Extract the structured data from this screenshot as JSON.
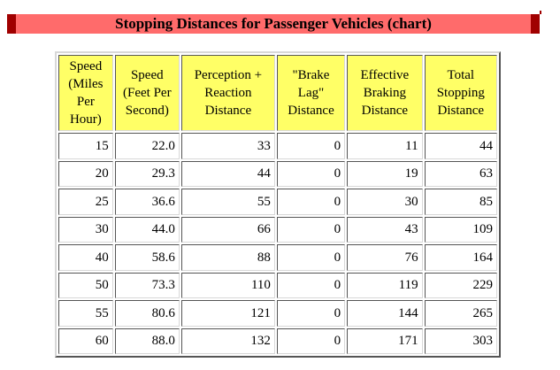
{
  "title": "Stopping Distances for Passenger Vehicles (chart)",
  "columns": [
    "Speed (Miles Per Hour)",
    "Speed (Feet Per Second)",
    "Perception + Reaction Distance",
    "\"Brake Lag\" Distance",
    "Effective Braking Distance",
    "Total Stopping Distance"
  ],
  "rows": [
    [
      "15",
      "22.0",
      "33",
      "0",
      "11",
      "44"
    ],
    [
      "20",
      "29.3",
      "44",
      "0",
      "19",
      "63"
    ],
    [
      "25",
      "36.6",
      "55",
      "0",
      "30",
      "85"
    ],
    [
      "30",
      "44.0",
      "66",
      "0",
      "43",
      "109"
    ],
    [
      "40",
      "58.6",
      "88",
      "0",
      "76",
      "164"
    ],
    [
      "50",
      "73.3",
      "110",
      "0",
      "119",
      "229"
    ],
    [
      "55",
      "80.6",
      "121",
      "0",
      "144",
      "265"
    ],
    [
      "60",
      "88.0",
      "132",
      "0",
      "171",
      "303"
    ]
  ],
  "colors": {
    "title_background": "#ff6b6b",
    "title_border": "#a00000",
    "header_background": "#ffff66"
  }
}
